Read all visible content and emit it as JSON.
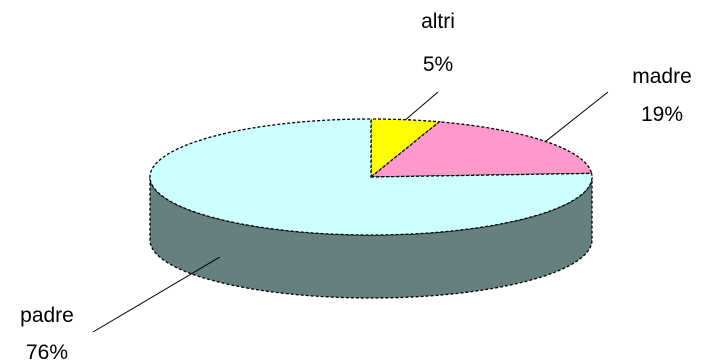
{
  "chart_data": {
    "type": "pie",
    "style": "3d",
    "slices": [
      {
        "label": "altri",
        "value": 5,
        "value_label": "5%",
        "color": "#FFFF00"
      },
      {
        "label": "madre",
        "value": 19,
        "value_label": "19%",
        "color": "#FF99CC"
      },
      {
        "label": "padre",
        "value": 76,
        "value_label": "76%",
        "color": "#CCFFFF"
      }
    ],
    "side_color": "#668080",
    "outline_color": "#000000"
  }
}
